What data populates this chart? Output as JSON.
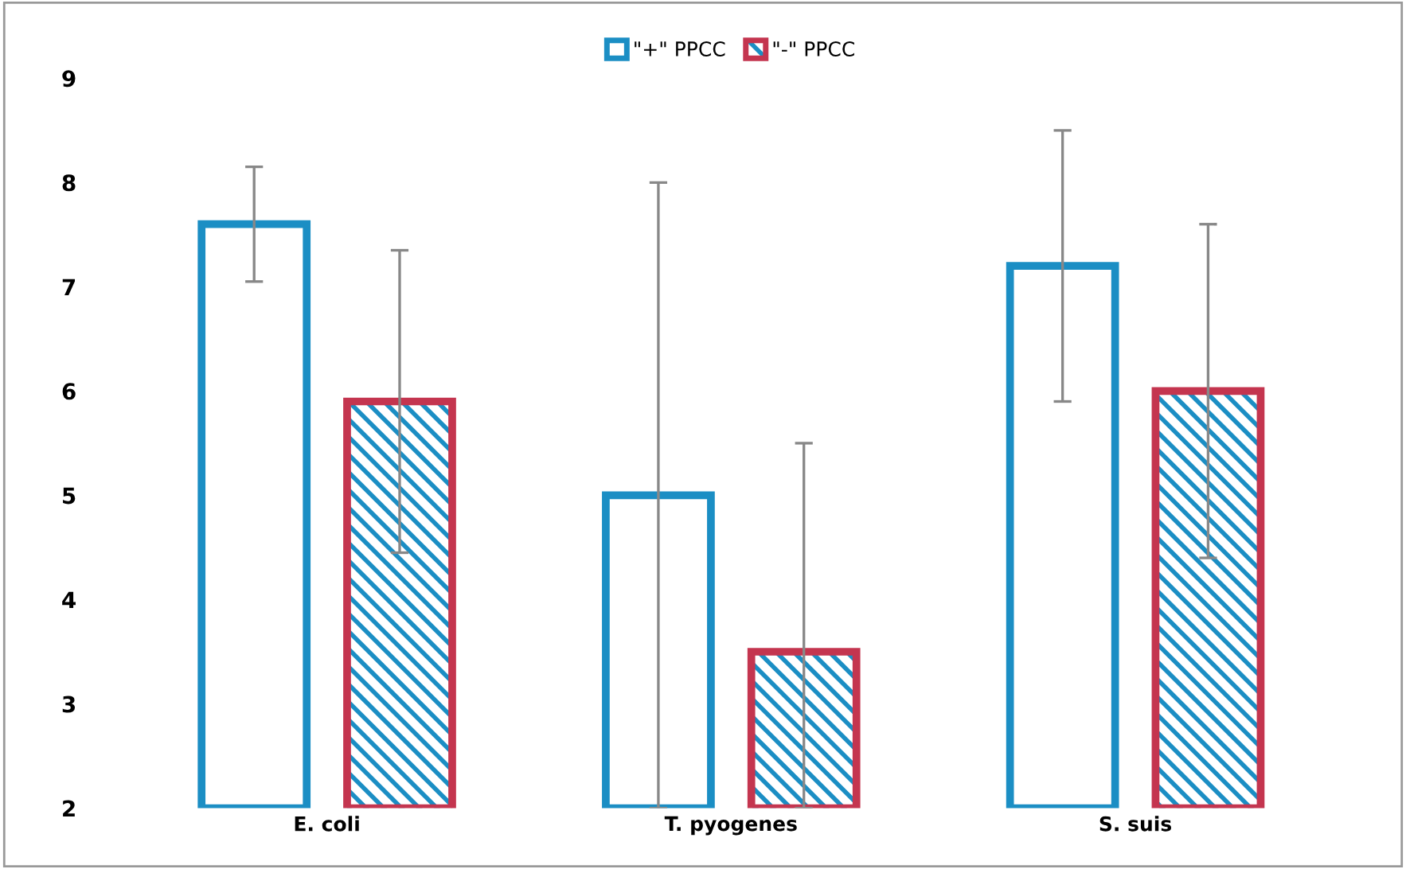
{
  "chart_data": {
    "type": "bar",
    "categories": [
      "E. coli",
      "T. pyogenes",
      "S. suis"
    ],
    "series": [
      {
        "name": "\"+\" PPCC",
        "color": "#1b8ec4",
        "values": [
          7.6,
          5.0,
          7.2
        ],
        "errors": [
          0.55,
          3.0,
          1.3
        ]
      },
      {
        "name": "\"-\" PPCC",
        "color": "#c4354f",
        "values": [
          5.9,
          3.5,
          6.0
        ],
        "errors": [
          1.45,
          [
            2.0,
            5.5
          ],
          1.6
        ]
      }
    ],
    "ylim": [
      2,
      9
    ],
    "yticks": [
      2,
      3,
      4,
      5,
      6,
      7,
      8,
      9
    ],
    "grid": false,
    "legend": "top"
  }
}
